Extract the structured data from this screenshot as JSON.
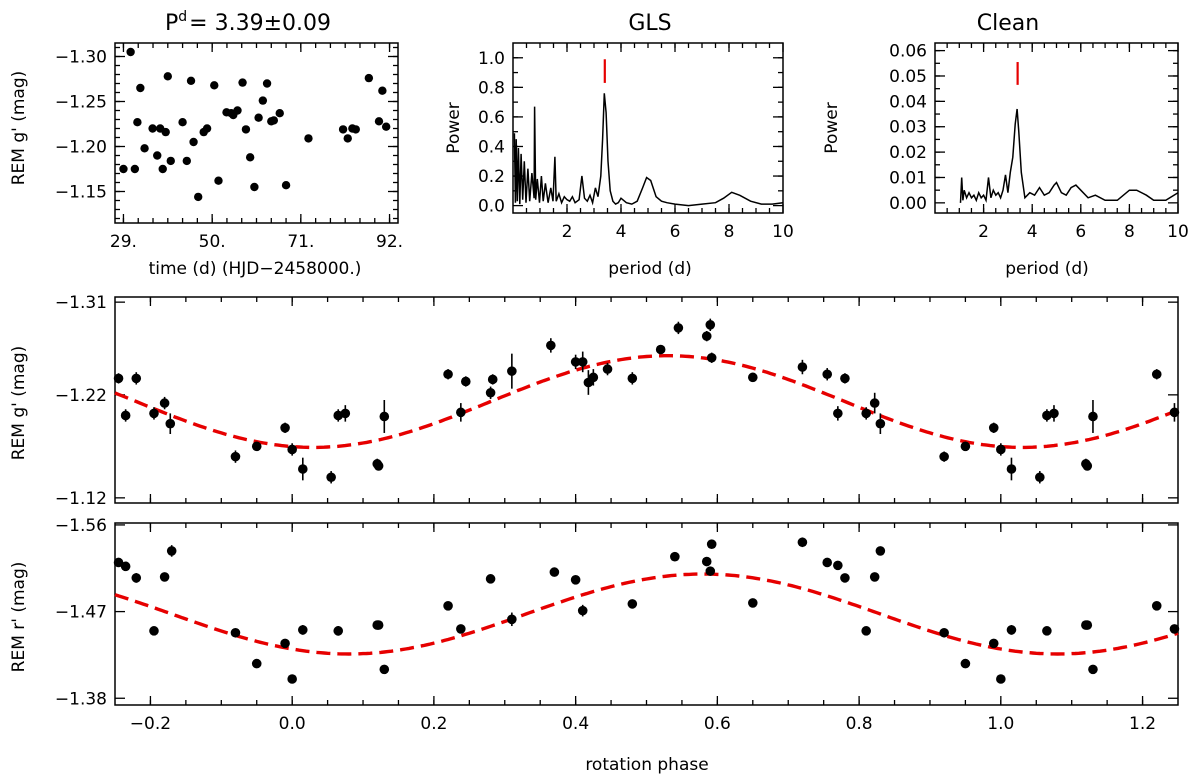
{
  "chart_data": [
    {
      "id": "light_curve",
      "type": "scatter",
      "title_prefix": "P",
      "title_superscript": "d",
      "title_value": "= 3.39±0.09",
      "xlabel": "time (d) (HJD−2458000.)",
      "ylabel": "REM g' (mag)",
      "xlim": [
        27,
        94
      ],
      "ylim": [
        -1.115,
        -1.315
      ],
      "xticks": [
        29,
        50,
        71,
        92
      ],
      "xtick_labels": [
        "29.",
        "50.",
        "71.",
        "92."
      ],
      "yticks": [
        -1.3,
        -1.25,
        -1.2,
        -1.15
      ],
      "ytick_labels": [
        "−1.30",
        "−1.25",
        "−1.20",
        "−1.15"
      ],
      "x": [
        29.0,
        30.7,
        31.7,
        32.3,
        33.0,
        34.0,
        35.9,
        37.0,
        37.7,
        38.3,
        39.0,
        39.5,
        40.2,
        43.0,
        44.0,
        45.0,
        45.6,
        46.7,
        48.0,
        48.8,
        50.5,
        51.5,
        53.4,
        54.5,
        55.0,
        56.0,
        57.2,
        58.0,
        59.0,
        60.0,
        61.0,
        62.0,
        63.0,
        64.0,
        64.6,
        66.0,
        67.5,
        72.8,
        81.0,
        82.1,
        83.2,
        84.0,
        87.1,
        89.5,
        90.3,
        91.2
      ],
      "y": [
        -1.175,
        -1.305,
        -1.175,
        -1.227,
        -1.265,
        -1.198,
        -1.22,
        -1.19,
        -1.22,
        -1.175,
        -1.216,
        -1.278,
        -1.184,
        -1.227,
        -1.184,
        -1.273,
        -1.205,
        -1.144,
        -1.216,
        -1.22,
        -1.268,
        -1.162,
        -1.238,
        -1.237,
        -1.235,
        -1.24,
        -1.271,
        -1.219,
        -1.188,
        -1.155,
        -1.232,
        -1.251,
        -1.27,
        -1.228,
        -1.229,
        -1.237,
        -1.157,
        -1.209,
        -1.219,
        -1.209,
        -1.22,
        -1.219,
        -1.276,
        -1.228,
        -1.262,
        -1.222
      ]
    },
    {
      "id": "gls",
      "type": "line",
      "title": "GLS",
      "xlabel": "period (d)",
      "ylabel": "Power",
      "xlim": [
        0,
        10
      ],
      "ylim": [
        -0.05,
        1.1
      ],
      "xticks": [
        2,
        4,
        6,
        8,
        10
      ],
      "xtick_labels": [
        "2",
        "4",
        "6",
        "8",
        "10"
      ],
      "yticks": [
        0.0,
        0.2,
        0.4,
        0.6,
        0.8,
        1.0
      ],
      "ytick_labels": [
        "0.0",
        "0.2",
        "0.4",
        "0.6",
        "0.8",
        "1.0"
      ],
      "peak_marker": {
        "x": 3.4,
        "y_from": 0.83,
        "y_to": 0.99,
        "color": "#e60000"
      },
      "series": [
        {
          "name": "GLS power",
          "x": [
            0.05,
            0.09,
            0.12,
            0.16,
            0.2,
            0.25,
            0.3,
            0.36,
            0.42,
            0.48,
            0.55,
            0.62,
            0.7,
            0.78,
            0.8,
            0.84,
            0.9,
            0.98,
            1.05,
            1.12,
            1.2,
            1.3,
            1.4,
            1.48,
            1.55,
            1.6,
            1.7,
            1.8,
            1.9,
            2.0,
            2.1,
            2.2,
            2.3,
            2.45,
            2.55,
            2.65,
            2.75,
            2.85,
            2.95,
            3.05,
            3.15,
            3.25,
            3.32,
            3.38,
            3.45,
            3.52,
            3.6,
            3.7,
            3.8,
            3.9,
            4.0,
            4.2,
            4.4,
            4.6,
            4.8,
            4.95,
            5.1,
            5.3,
            5.5,
            5.7,
            6.0,
            6.5,
            7.0,
            7.5,
            7.8,
            8.1,
            8.4,
            8.8,
            9.2,
            9.6,
            10.0
          ],
          "y": [
            0.49,
            0.02,
            0.45,
            0.03,
            0.39,
            0.01,
            0.35,
            0.04,
            0.3,
            0.02,
            0.25,
            0.03,
            0.22,
            0.05,
            0.67,
            0.04,
            0.18,
            0.02,
            0.2,
            0.03,
            0.15,
            0.02,
            0.12,
            0.03,
            0.33,
            0.03,
            0.08,
            0.02,
            0.06,
            0.04,
            0.03,
            0.06,
            0.02,
            0.04,
            0.2,
            0.05,
            0.03,
            0.07,
            0.02,
            0.12,
            0.06,
            0.2,
            0.45,
            0.76,
            0.63,
            0.3,
            0.1,
            0.03,
            0.01,
            0.02,
            0.05,
            0.02,
            0.01,
            0.03,
            0.12,
            0.19,
            0.17,
            0.06,
            0.03,
            0.02,
            0.01,
            0.0,
            0.01,
            0.02,
            0.05,
            0.09,
            0.07,
            0.03,
            0.01,
            0.01,
            0.02
          ]
        }
      ]
    },
    {
      "id": "clean",
      "type": "line",
      "title": "Clean",
      "xlabel": "period (d)",
      "ylabel": "Power",
      "xlim": [
        0,
        10
      ],
      "ylim": [
        -0.004,
        0.063
      ],
      "xticks": [
        2,
        4,
        6,
        8,
        10
      ],
      "xtick_labels": [
        "2",
        "4",
        "6",
        "8",
        "10"
      ],
      "yticks": [
        0.0,
        0.01,
        0.02,
        0.03,
        0.04,
        0.05,
        0.06
      ],
      "ytick_labels": [
        "0.00",
        "0.01",
        "0.02",
        "0.03",
        "0.04",
        "0.05",
        "0.06"
      ],
      "peak_marker": {
        "x": 3.4,
        "y_from": 0.0465,
        "y_to": 0.0555,
        "color": "#e60000"
      },
      "series": [
        {
          "name": "Clean power",
          "x": [
            1.05,
            1.1,
            1.15,
            1.2,
            1.3,
            1.4,
            1.5,
            1.6,
            1.7,
            1.8,
            1.9,
            2.0,
            2.1,
            2.2,
            2.3,
            2.4,
            2.5,
            2.6,
            2.7,
            2.8,
            2.9,
            3.0,
            3.1,
            3.2,
            3.3,
            3.38,
            3.45,
            3.55,
            3.7,
            3.9,
            4.1,
            4.3,
            4.5,
            4.7,
            4.9,
            5.0,
            5.2,
            5.4,
            5.6,
            5.8,
            6.0,
            6.3,
            6.6,
            7.0,
            7.5,
            8.0,
            8.3,
            8.7,
            9.0,
            9.5,
            10.0
          ],
          "y": [
            0.0,
            0.01,
            0.001,
            0.005,
            0.002,
            0.004,
            0.002,
            0.003,
            0.001,
            0.004,
            0.002,
            0.003,
            0.001,
            0.01,
            0.002,
            0.005,
            0.003,
            0.004,
            0.002,
            0.005,
            0.011,
            0.004,
            0.012,
            0.018,
            0.031,
            0.037,
            0.028,
            0.012,
            0.002,
            0.004,
            0.003,
            0.006,
            0.003,
            0.004,
            0.007,
            0.008,
            0.004,
            0.003,
            0.006,
            0.007,
            0.005,
            0.002,
            0.003,
            0.001,
            0.001,
            0.005,
            0.005,
            0.003,
            0.001,
            0.001,
            0.004
          ]
        }
      ]
    },
    {
      "id": "phase_g",
      "type": "scatter",
      "xlabel": "",
      "ylabel": "REM g' (mag)",
      "xlim": [
        -0.25,
        1.25
      ],
      "ylim": [
        -1.115,
        -1.315
      ],
      "xticks": [
        -0.2,
        0.0,
        0.2,
        0.4,
        0.6,
        0.8,
        1.0,
        1.2
      ],
      "yticks": [
        -1.31,
        -1.22,
        -1.12
      ],
      "ytick_labels": [
        "−1.31",
        "−1.22",
        "−1.12"
      ],
      "fit": {
        "mean": -1.2135,
        "amplitude": 0.0445,
        "phase_of_max": 0.53,
        "color": "#e60000"
      },
      "points": {
        "phase": [
          -0.245,
          -0.235,
          -0.22,
          -0.195,
          -0.18,
          -0.172,
          -0.08,
          -0.05,
          -0.01,
          0.0,
          0.015,
          0.055,
          0.065,
          0.075,
          0.12,
          0.122,
          0.13,
          0.22,
          0.238,
          0.245,
          0.28,
          0.283,
          0.31,
          0.365,
          0.4,
          0.41,
          0.418,
          0.425,
          0.445,
          0.48,
          0.52,
          0.545,
          0.585,
          0.59,
          0.592,
          0.65,
          0.72,
          0.755,
          0.77,
          0.78,
          0.81,
          0.822,
          0.83,
          0.92,
          0.95,
          0.99,
          1.0,
          1.015,
          1.055,
          1.065,
          1.075,
          1.12,
          1.122,
          1.13,
          1.22,
          1.245
        ],
        "mag": [
          -1.236,
          -1.2,
          -1.236,
          -1.202,
          -1.212,
          -1.192,
          -1.16,
          -1.17,
          -1.188,
          -1.167,
          -1.148,
          -1.14,
          -1.2,
          -1.202,
          -1.153,
          -1.151,
          -1.199,
          -1.24,
          -1.203,
          -1.233,
          -1.222,
          -1.235,
          -1.243,
          -1.268,
          -1.252,
          -1.252,
          -1.232,
          -1.237,
          -1.245,
          -1.236,
          -1.264,
          -1.285,
          -1.277,
          -1.288,
          -1.256,
          -1.237,
          -1.247,
          -1.24,
          -1.202,
          -1.236,
          -1.202,
          -1.212,
          -1.192,
          -1.16,
          -1.17,
          -1.188,
          -1.167,
          -1.148,
          -1.14,
          -1.2,
          -1.202,
          -1.153,
          -1.151,
          -1.199,
          -1.24,
          -1.203
        ],
        "err": [
          0.005,
          0.006,
          0.006,
          0.006,
          0.006,
          0.01,
          0.006,
          0.004,
          0.005,
          0.006,
          0.011,
          0.006,
          0.006,
          0.008,
          0.005,
          0.004,
          0.016,
          0.005,
          0.009,
          0.005,
          0.006,
          0.005,
          0.017,
          0.007,
          0.007,
          0.01,
          0.012,
          0.008,
          0.006,
          0.006,
          0.004,
          0.006,
          0.005,
          0.006,
          0.005,
          0.004,
          0.007,
          0.006,
          0.007,
          0.005,
          0.006,
          0.01,
          0.01,
          0.005,
          0.004,
          0.005,
          0.006,
          0.011,
          0.006,
          0.006,
          0.008,
          0.005,
          0.004,
          0.016,
          0.005,
          0.009
        ]
      }
    },
    {
      "id": "phase_r",
      "type": "scatter",
      "xlabel": "rotation phase",
      "ylabel": "REM r' (mag)",
      "xlim": [
        -0.25,
        1.25
      ],
      "ylim": [
        -1.373,
        -1.562
      ],
      "xticks": [
        -0.2,
        0.0,
        0.2,
        0.4,
        0.6,
        0.8,
        1.0,
        1.2
      ],
      "xtick_labels": [
        "−0.2",
        "0.0",
        "0.2",
        "0.4",
        "0.6",
        "0.8",
        "1.0",
        "1.2"
      ],
      "yticks": [
        -1.56,
        -1.47,
        -1.38
      ],
      "ytick_labels": [
        "−1.56",
        "−1.47",
        "−1.38"
      ],
      "fit": {
        "mean": -1.4675,
        "amplitude": 0.0415,
        "phase_of_max": 0.58,
        "color": "#e60000"
      },
      "points": {
        "phase": [
          -0.245,
          -0.235,
          -0.22,
          -0.195,
          -0.18,
          -0.17,
          -0.08,
          -0.05,
          -0.01,
          0.0,
          0.015,
          0.065,
          0.12,
          0.122,
          0.13,
          0.22,
          0.238,
          0.28,
          0.31,
          0.37,
          0.4,
          0.41,
          0.48,
          0.54,
          0.585,
          0.59,
          0.592,
          0.65,
          0.72,
          0.755,
          0.77,
          0.78,
          0.81,
          0.822,
          0.83,
          0.92,
          0.95,
          0.99,
          1.0,
          1.015,
          1.065,
          1.12,
          1.122,
          1.13,
          1.22,
          1.245
        ],
        "mag": [
          -1.521,
          -1.517,
          -1.505,
          -1.45,
          -1.506,
          -1.533,
          -1.448,
          -1.416,
          -1.437,
          -1.4,
          -1.451,
          -1.45,
          -1.456,
          -1.456,
          -1.41,
          -1.476,
          -1.452,
          -1.504,
          -1.462,
          -1.511,
          -1.503,
          -1.471,
          -1.478,
          -1.527,
          -1.522,
          -1.512,
          -1.54,
          -1.479,
          -1.542,
          -1.521,
          -1.518,
          -1.505,
          -1.45,
          -1.506,
          -1.533,
          -1.448,
          -1.416,
          -1.437,
          -1.4,
          -1.451,
          -1.45,
          -1.456,
          -1.456,
          -1.41,
          -1.476,
          -1.452
        ],
        "err": [
          0.003,
          0.003,
          0.005,
          0.004,
          0.004,
          0.006,
          0.004,
          0.003,
          0.004,
          0.003,
          0.005,
          0.005,
          0.004,
          0.003,
          0.004,
          0.003,
          0.003,
          0.003,
          0.007,
          0.003,
          0.004,
          0.006,
          0.003,
          0.003,
          0.003,
          0.004,
          0.003,
          0.003,
          0.005,
          0.003,
          0.003,
          0.004,
          0.003,
          0.004,
          0.004,
          0.003,
          0.003,
          0.003,
          0.003,
          0.005,
          0.004,
          0.003,
          0.003,
          0.004,
          0.003,
          0.003
        ]
      }
    }
  ]
}
